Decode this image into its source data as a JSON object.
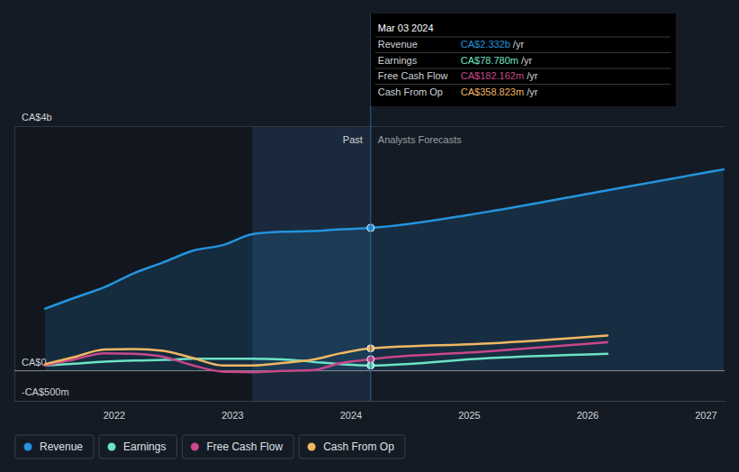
{
  "chart_data": {
    "type": "line",
    "x": [
      2021.42,
      2021.67,
      2021.92,
      2022.17,
      2022.42,
      2022.67,
      2022.92,
      2023.17,
      2023.42,
      2023.67,
      2023.92,
      2024.17,
      2025.17,
      2026.17,
      2027.15
    ],
    "xlim": [
      2021.16,
      2027.16
    ],
    "xticks": [
      2022,
      2023,
      2024,
      2025,
      2026,
      2027
    ],
    "ylim": [
      -0.5,
      4
    ],
    "yticks": [
      {
        "value": -0.5,
        "label": "-CA$500m"
      },
      {
        "value": 0,
        "label": "CA$0"
      },
      {
        "value": 4,
        "label": "CA$4b"
      }
    ],
    "grid": true,
    "legend": "bottom-left",
    "highlight": [
      2023.17,
      2024.17
    ],
    "past_label": "Past",
    "forecast_label": "Analysts Forecasts",
    "tooltip": {
      "date": "Mar 03 2024",
      "x": 2024.17,
      "unit": "/yr"
    },
    "series": [
      {
        "name": "Revenue",
        "color": "#2394df",
        "type": "area",
        "tooltip_label": "CA$2.332b",
        "values": [
          1.01,
          1.19,
          1.36,
          1.59,
          1.77,
          1.96,
          2.05,
          2.23,
          2.27,
          2.28,
          2.31,
          2.332,
          2.6,
          2.95,
          3.29
        ]
      },
      {
        "name": "Earnings",
        "color": "#6ce3c4",
        "type": "line",
        "tooltip_label": "CA$78.780m",
        "values": [
          0.08,
          0.11,
          0.14,
          0.16,
          0.17,
          0.19,
          0.19,
          0.19,
          0.18,
          0.14,
          0.1,
          0.07878,
          0.2,
          0.27,
          null
        ]
      },
      {
        "name": "Free Cash Flow",
        "color": "#c9478a",
        "type": "line",
        "tooltip_label": "CA$182.162m",
        "values": [
          0.08,
          0.18,
          0.28,
          0.27,
          0.22,
          0.08,
          -0.02,
          -0.03,
          -0.01,
          0.0,
          0.12,
          0.182162,
          0.31,
          0.46,
          null
        ]
      },
      {
        "name": "Cash From Op",
        "color": "#f0b762",
        "type": "line",
        "tooltip_label": "CA$358.823m",
        "values": [
          0.1,
          0.22,
          0.34,
          0.35,
          0.32,
          0.2,
          0.08,
          0.08,
          0.12,
          0.17,
          0.28,
          0.358823,
          0.44,
          0.57,
          null
        ]
      }
    ]
  }
}
